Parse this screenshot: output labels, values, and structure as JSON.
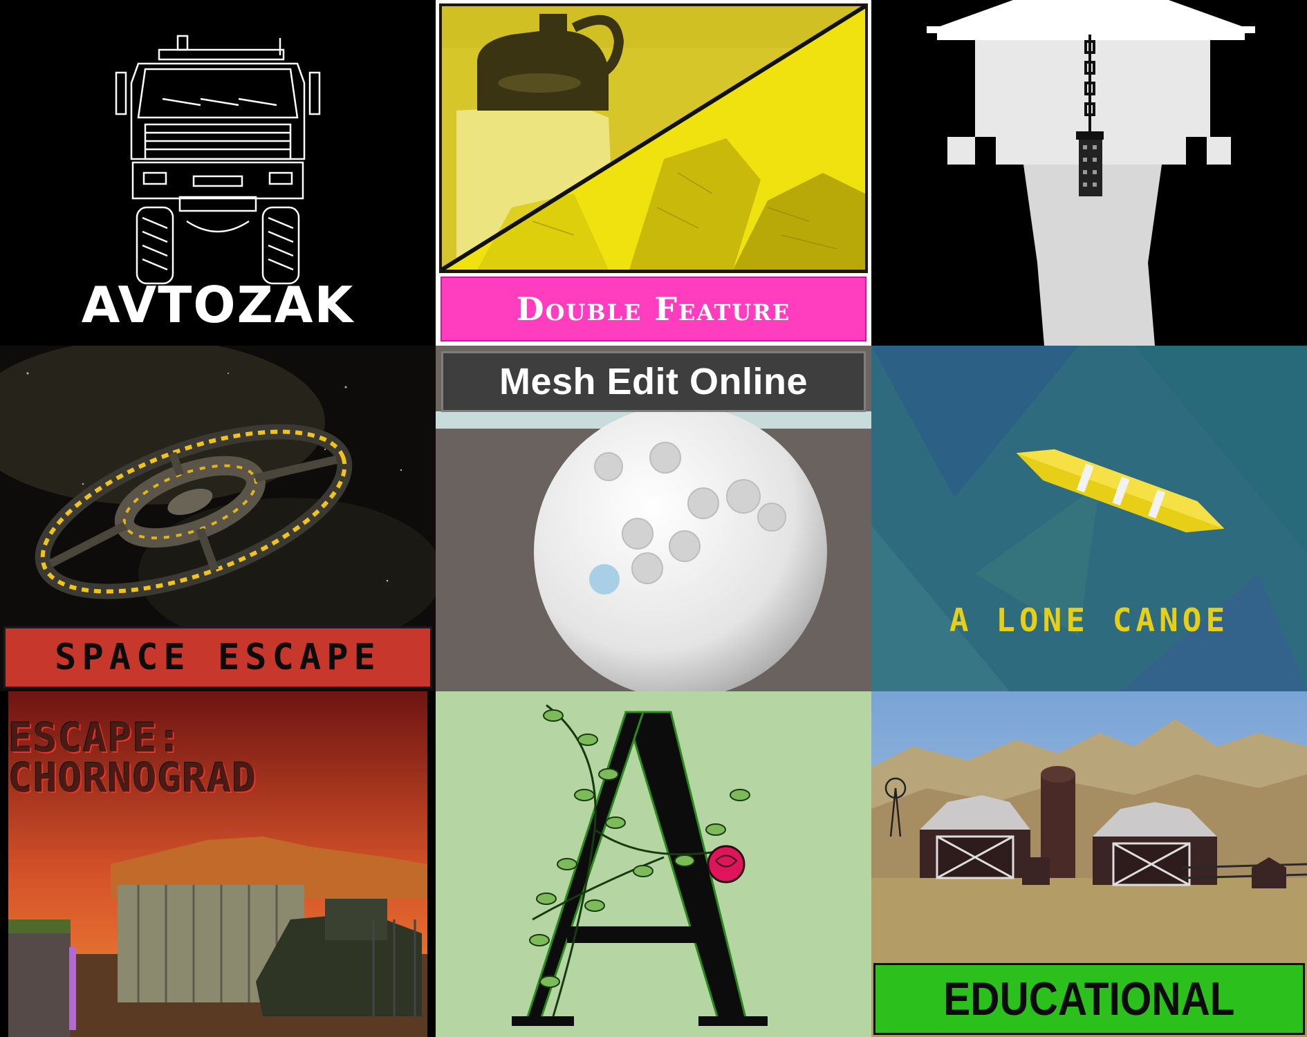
{
  "tiles": [
    {
      "id": "avtozak",
      "title": "AVTOZAK",
      "icon": "truck-icon",
      "bg": "#000000"
    },
    {
      "id": "double-feature",
      "title": "Double Feature",
      "icon": "jug-icon",
      "accent": "#ff3dbe"
    },
    {
      "id": "well",
      "title": "",
      "icon": "well-icon"
    },
    {
      "id": "space-escape",
      "title": "SPACE ESCAPE",
      "icon": "space-station-icon",
      "accent": "#c8372b"
    },
    {
      "id": "mesh-edit-online",
      "title": "Mesh Edit Online",
      "icon": "sphere-icon"
    },
    {
      "id": "lone-canoe",
      "title": "A LONE CANOE",
      "icon": "canoe-icon",
      "accent": "#e8cf17"
    },
    {
      "id": "escape-chornograd",
      "title": "ESCAPE: CHORNOGRAD",
      "icon": "ruins-icon"
    },
    {
      "id": "letter-a",
      "title": "",
      "icon": "letter-a-rose-icon"
    },
    {
      "id": "educational",
      "title": "EDUCATIONAL",
      "icon": "farm-icon",
      "accent": "#2cc01c"
    }
  ]
}
